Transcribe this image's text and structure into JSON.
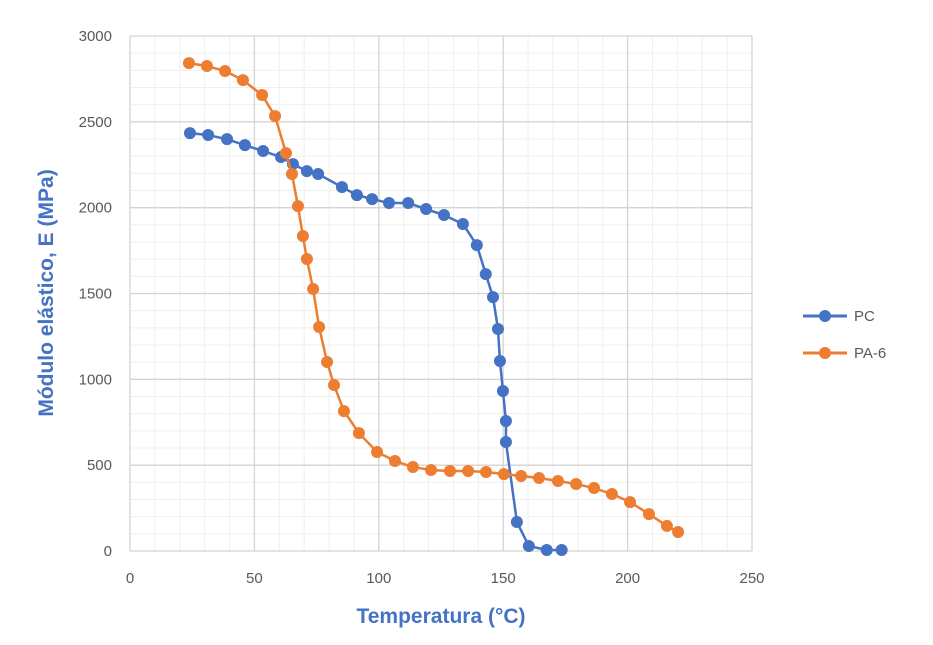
{
  "chart_data": {
    "type": "line",
    "title": "",
    "xlabel": "Temperatura (°C)",
    "ylabel": "Módulo elástico, E (MPa)",
    "xlim": [
      0,
      250
    ],
    "ylim": [
      0,
      3000
    ],
    "xticks": [
      0,
      50,
      100,
      150,
      200,
      250
    ],
    "yticks": [
      0,
      500,
      1000,
      1500,
      2000,
      2500,
      3000
    ],
    "grid": {
      "major": true,
      "minor": true,
      "x_minor_step": 10,
      "y_minor_step": 100
    },
    "legend": "right",
    "axis_title_color": "#4472C4",
    "series": [
      {
        "name": "PC",
        "color": "#4472C4",
        "x": [
          24.1,
          31.4,
          39,
          46.2,
          53.5,
          60.7,
          65.5,
          71.1,
          75.6,
          85.2,
          91.2,
          97.3,
          104.1,
          111.8,
          119,
          126.2,
          133.8,
          139.4,
          143,
          145.9,
          147.9,
          148.7,
          149.9,
          151.1,
          151.1,
          155.5,
          160.3,
          167.5,
          173.5
        ],
        "y": [
          2434,
          2423,
          2399,
          2364,
          2330,
          2295,
          2254,
          2213,
          2196,
          2120,
          2073,
          2050,
          2027,
          2027,
          1992,
          1957,
          1905,
          1782,
          1613,
          1479,
          1293,
          1107,
          932,
          757,
          635,
          169,
          29,
          6,
          6
        ]
      },
      {
        "name": "PA-6",
        "color": "#ED7D31",
        "x": [
          23.7,
          30.9,
          38.2,
          45.4,
          53.1,
          58.3,
          62.7,
          65.1,
          67.5,
          69.5,
          71.1,
          73.6,
          76,
          79.2,
          82,
          86,
          92,
          99.3,
          106.5,
          113.7,
          121,
          128.6,
          135.9,
          143.1,
          150.3,
          157.2,
          164.4,
          172,
          179.3,
          186.5,
          193.7,
          201,
          208.6,
          215.8,
          220.3
        ],
        "y": [
          2842,
          2825,
          2796,
          2743,
          2656,
          2533,
          2318,
          2196,
          2009,
          1835,
          1701,
          1526,
          1305,
          1101,
          967,
          815,
          687,
          577,
          524,
          489,
          472,
          466,
          466,
          460,
          448,
          437,
          425,
          408,
          390,
          367,
          332,
          285,
          215,
          146,
          111
        ]
      }
    ]
  }
}
